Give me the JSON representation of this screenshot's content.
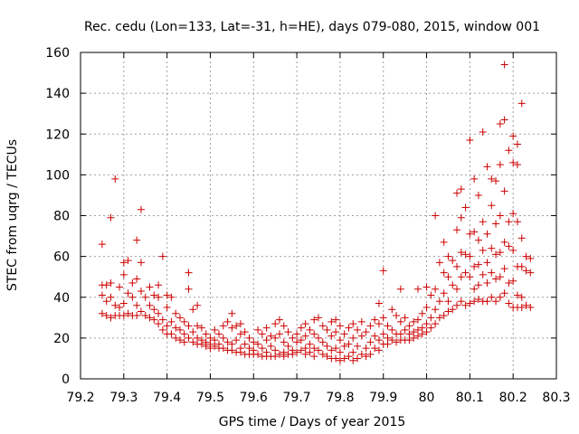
{
  "chart_data": {
    "type": "scatter",
    "title": "Rec. cedu (Lon=133, Lat=-31, h=HE), days 079-080, 2015, window 001",
    "xlabel": "GPS time / Days of year 2015",
    "ylabel": "STEC from uqrg / TECUs",
    "xlim": [
      79.2,
      80.3
    ],
    "ylim": [
      0,
      160
    ],
    "xticks": [
      79.2,
      79.3,
      79.4,
      79.5,
      79.6,
      79.7,
      79.8,
      79.9,
      80,
      80.1,
      80.2,
      80.3
    ],
    "yticks": [
      0,
      20,
      40,
      60,
      80,
      100,
      120,
      140,
      160
    ],
    "xtick_labels": [
      "79.2",
      "79.3",
      "79.4",
      "79.5",
      "79.6",
      "79.7",
      "79.8",
      "79.9",
      "80",
      "80.1",
      "80.2",
      "80.3"
    ],
    "ytick_labels": [
      "0",
      "20",
      "40",
      "60",
      "80",
      "100",
      "120",
      "140",
      "160"
    ],
    "grid": true,
    "marker": "+",
    "colors": {
      "marker": "#cc0000",
      "grid": "#a0a0a0",
      "axis": "#000000"
    },
    "points": [
      [
        79.25,
        66
      ],
      [
        79.25,
        46
      ],
      [
        79.25,
        41
      ],
      [
        79.25,
        32
      ],
      [
        79.26,
        46
      ],
      [
        79.26,
        38
      ],
      [
        79.26,
        31
      ],
      [
        79.27,
        79
      ],
      [
        79.27,
        47
      ],
      [
        79.27,
        40
      ],
      [
        79.27,
        30
      ],
      [
        79.28,
        98
      ],
      [
        79.28,
        36
      ],
      [
        79.28,
        31
      ],
      [
        79.29,
        45
      ],
      [
        79.29,
        35
      ],
      [
        79.29,
        31
      ],
      [
        79.3,
        57
      ],
      [
        79.3,
        51
      ],
      [
        79.3,
        37
      ],
      [
        79.3,
        31
      ],
      [
        79.31,
        58
      ],
      [
        79.31,
        42
      ],
      [
        79.31,
        32
      ],
      [
        79.32,
        47
      ],
      [
        79.32,
        40
      ],
      [
        79.32,
        31
      ],
      [
        79.33,
        68
      ],
      [
        79.33,
        49
      ],
      [
        79.33,
        36
      ],
      [
        79.33,
        31
      ],
      [
        79.34,
        83
      ],
      [
        79.34,
        57
      ],
      [
        79.34,
        43
      ],
      [
        79.34,
        33
      ],
      [
        79.35,
        40
      ],
      [
        79.35,
        31
      ],
      [
        79.36,
        45
      ],
      [
        79.36,
        36
      ],
      [
        79.36,
        30
      ],
      [
        79.37,
        41
      ],
      [
        79.37,
        34
      ],
      [
        79.37,
        29
      ],
      [
        79.38,
        46
      ],
      [
        79.38,
        40
      ],
      [
        79.38,
        32
      ],
      [
        79.38,
        27
      ],
      [
        79.39,
        60
      ],
      [
        79.39,
        29
      ],
      [
        79.39,
        24
      ],
      [
        79.4,
        41
      ],
      [
        79.4,
        35
      ],
      [
        79.4,
        26
      ],
      [
        79.4,
        22
      ],
      [
        79.41,
        40
      ],
      [
        79.41,
        28
      ],
      [
        79.41,
        22
      ],
      [
        79.42,
        32
      ],
      [
        79.42,
        25
      ],
      [
        79.42,
        20
      ],
      [
        79.43,
        30
      ],
      [
        79.43,
        24
      ],
      [
        79.43,
        19
      ],
      [
        79.44,
        28
      ],
      [
        79.44,
        22
      ],
      [
        79.44,
        18
      ],
      [
        79.45,
        52
      ],
      [
        79.45,
        44
      ],
      [
        79.45,
        26
      ],
      [
        79.45,
        20
      ],
      [
        79.46,
        34
      ],
      [
        79.46,
        23
      ],
      [
        79.46,
        18
      ],
      [
        79.47,
        36
      ],
      [
        79.47,
        26
      ],
      [
        79.47,
        20
      ],
      [
        79.47,
        17
      ],
      [
        79.48,
        25
      ],
      [
        79.48,
        19
      ],
      [
        79.48,
        17
      ],
      [
        79.49,
        22
      ],
      [
        79.49,
        18
      ],
      [
        79.49,
        16
      ],
      [
        79.5,
        20
      ],
      [
        79.5,
        17
      ],
      [
        79.5,
        15
      ],
      [
        79.51,
        24
      ],
      [
        79.51,
        19
      ],
      [
        79.51,
        16
      ],
      [
        79.52,
        22
      ],
      [
        79.52,
        17
      ],
      [
        79.52,
        15
      ],
      [
        79.53,
        26
      ],
      [
        79.53,
        20
      ],
      [
        79.53,
        15
      ],
      [
        79.54,
        28
      ],
      [
        79.54,
        18
      ],
      [
        79.54,
        14
      ],
      [
        79.55,
        32
      ],
      [
        79.55,
        25
      ],
      [
        79.55,
        17
      ],
      [
        79.55,
        14
      ],
      [
        79.56,
        26
      ],
      [
        79.56,
        19
      ],
      [
        79.56,
        13
      ],
      [
        79.57,
        27
      ],
      [
        79.57,
        22
      ],
      [
        79.57,
        15
      ],
      [
        79.57,
        13
      ],
      [
        79.58,
        23
      ],
      [
        79.58,
        17
      ],
      [
        79.58,
        12
      ],
      [
        79.59,
        20
      ],
      [
        79.59,
        15
      ],
      [
        79.59,
        12
      ],
      [
        79.6,
        18
      ],
      [
        79.6,
        14
      ],
      [
        79.6,
        12
      ],
      [
        79.61,
        24
      ],
      [
        79.61,
        17
      ],
      [
        79.61,
        12
      ],
      [
        79.62,
        22
      ],
      [
        79.62,
        15
      ],
      [
        79.62,
        11
      ],
      [
        79.63,
        25
      ],
      [
        79.63,
        19
      ],
      [
        79.63,
        13
      ],
      [
        79.63,
        11
      ],
      [
        79.64,
        21
      ],
      [
        79.64,
        16
      ],
      [
        79.64,
        11
      ],
      [
        79.65,
        27
      ],
      [
        79.65,
        20
      ],
      [
        79.65,
        14
      ],
      [
        79.65,
        11
      ],
      [
        79.66,
        29
      ],
      [
        79.66,
        22
      ],
      [
        79.66,
        12
      ],
      [
        79.67,
        26
      ],
      [
        79.67,
        18
      ],
      [
        79.67,
        13
      ],
      [
        79.67,
        11
      ],
      [
        79.68,
        23
      ],
      [
        79.68,
        16
      ],
      [
        79.68,
        12
      ],
      [
        79.69,
        20
      ],
      [
        79.69,
        14
      ],
      [
        79.69,
        12
      ],
      [
        79.7,
        22
      ],
      [
        79.7,
        18
      ],
      [
        79.7,
        13
      ],
      [
        79.71,
        25
      ],
      [
        79.71,
        19
      ],
      [
        79.71,
        14
      ],
      [
        79.72,
        27
      ],
      [
        79.72,
        21
      ],
      [
        79.72,
        15
      ],
      [
        79.72,
        12
      ],
      [
        79.73,
        24
      ],
      [
        79.73,
        17
      ],
      [
        79.73,
        13
      ],
      [
        79.74,
        29
      ],
      [
        79.74,
        22
      ],
      [
        79.74,
        15
      ],
      [
        79.74,
        11
      ],
      [
        79.75,
        30
      ],
      [
        79.75,
        20
      ],
      [
        79.75,
        14
      ],
      [
        79.76,
        26
      ],
      [
        79.76,
        18
      ],
      [
        79.76,
        12
      ],
      [
        79.77,
        24
      ],
      [
        79.77,
        16
      ],
      [
        79.77,
        11
      ],
      [
        79.78,
        28
      ],
      [
        79.78,
        21
      ],
      [
        79.78,
        14
      ],
      [
        79.78,
        10
      ],
      [
        79.79,
        29
      ],
      [
        79.79,
        23
      ],
      [
        79.79,
        15
      ],
      [
        79.79,
        10
      ],
      [
        79.8,
        26
      ],
      [
        79.8,
        19
      ],
      [
        79.8,
        13
      ],
      [
        79.8,
        9
      ],
      [
        79.81,
        22
      ],
      [
        79.81,
        16
      ],
      [
        79.81,
        10
      ],
      [
        79.82,
        25
      ],
      [
        79.82,
        17
      ],
      [
        79.82,
        11
      ],
      [
        79.83,
        27
      ],
      [
        79.83,
        20
      ],
      [
        79.83,
        13
      ],
      [
        79.83,
        9
      ],
      [
        79.84,
        24
      ],
      [
        79.84,
        16
      ],
      [
        79.84,
        10
      ],
      [
        79.85,
        28
      ],
      [
        79.85,
        21
      ],
      [
        79.85,
        12
      ],
      [
        79.86,
        23
      ],
      [
        79.86,
        15
      ],
      [
        79.86,
        11
      ],
      [
        79.87,
        26
      ],
      [
        79.87,
        18
      ],
      [
        79.87,
        12
      ],
      [
        79.88,
        29
      ],
      [
        79.88,
        21
      ],
      [
        79.88,
        15
      ],
      [
        79.89,
        37
      ],
      [
        79.89,
        27
      ],
      [
        79.89,
        19
      ],
      [
        79.89,
        14
      ],
      [
        79.9,
        53
      ],
      [
        79.9,
        30
      ],
      [
        79.9,
        22
      ],
      [
        79.9,
        17
      ],
      [
        79.91,
        26
      ],
      [
        79.91,
        20
      ],
      [
        79.91,
        17
      ],
      [
        79.92,
        34
      ],
      [
        79.92,
        24
      ],
      [
        79.92,
        19
      ],
      [
        79.93,
        31
      ],
      [
        79.93,
        22
      ],
      [
        79.93,
        18
      ],
      [
        79.94,
        44
      ],
      [
        79.94,
        28
      ],
      [
        79.94,
        22
      ],
      [
        79.94,
        19
      ],
      [
        79.95,
        30
      ],
      [
        79.95,
        24
      ],
      [
        79.95,
        19
      ],
      [
        79.96,
        26
      ],
      [
        79.96,
        22
      ],
      [
        79.96,
        19
      ],
      [
        79.97,
        28
      ],
      [
        79.97,
        23
      ],
      [
        79.97,
        20
      ],
      [
        79.98,
        44
      ],
      [
        79.98,
        29
      ],
      [
        79.98,
        24
      ],
      [
        79.98,
        21
      ],
      [
        79.99,
        32
      ],
      [
        79.99,
        25
      ],
      [
        79.99,
        22
      ],
      [
        80.0,
        45
      ],
      [
        80.0,
        35
      ],
      [
        80.0,
        27
      ],
      [
        80.0,
        23
      ],
      [
        80.01,
        41
      ],
      [
        80.01,
        30
      ],
      [
        80.01,
        25
      ],
      [
        80.02,
        80
      ],
      [
        80.02,
        44
      ],
      [
        80.02,
        34
      ],
      [
        80.02,
        27
      ],
      [
        80.03,
        57
      ],
      [
        80.03,
        38
      ],
      [
        80.03,
        30
      ],
      [
        80.04,
        67
      ],
      [
        80.04,
        52
      ],
      [
        80.04,
        42
      ],
      [
        80.04,
        31
      ],
      [
        80.05,
        60
      ],
      [
        80.05,
        50
      ],
      [
        80.05,
        38
      ],
      [
        80.05,
        33
      ],
      [
        80.06,
        58
      ],
      [
        80.06,
        46
      ],
      [
        80.06,
        34
      ],
      [
        80.07,
        91
      ],
      [
        80.07,
        73
      ],
      [
        80.07,
        55
      ],
      [
        80.07,
        44
      ],
      [
        80.07,
        36
      ],
      [
        80.08,
        93
      ],
      [
        80.08,
        79
      ],
      [
        80.08,
        62
      ],
      [
        80.08,
        50
      ],
      [
        80.08,
        38
      ],
      [
        80.09,
        84
      ],
      [
        80.09,
        61
      ],
      [
        80.09,
        52
      ],
      [
        80.09,
        36
      ],
      [
        80.1,
        117
      ],
      [
        80.1,
        71
      ],
      [
        80.1,
        60
      ],
      [
        80.1,
        50
      ],
      [
        80.1,
        37
      ],
      [
        80.11,
        98
      ],
      [
        80.11,
        72
      ],
      [
        80.11,
        55
      ],
      [
        80.11,
        44
      ],
      [
        80.11,
        38
      ],
      [
        80.12,
        90
      ],
      [
        80.12,
        68
      ],
      [
        80.12,
        56
      ],
      [
        80.12,
        46
      ],
      [
        80.12,
        39
      ],
      [
        80.13,
        121
      ],
      [
        80.13,
        77
      ],
      [
        80.13,
        63
      ],
      [
        80.13,
        51
      ],
      [
        80.13,
        38
      ],
      [
        80.14,
        104
      ],
      [
        80.14,
        71
      ],
      [
        80.14,
        57
      ],
      [
        80.14,
        47
      ],
      [
        80.14,
        38
      ],
      [
        80.15,
        98
      ],
      [
        80.15,
        85
      ],
      [
        80.15,
        64
      ],
      [
        80.15,
        52
      ],
      [
        80.15,
        40
      ],
      [
        80.16,
        97
      ],
      [
        80.16,
        76
      ],
      [
        80.16,
        61
      ],
      [
        80.16,
        49
      ],
      [
        80.16,
        38
      ],
      [
        80.17,
        125
      ],
      [
        80.17,
        105
      ],
      [
        80.17,
        80
      ],
      [
        80.17,
        62
      ],
      [
        80.17,
        50
      ],
      [
        80.17,
        40
      ],
      [
        80.18,
        154
      ],
      [
        80.18,
        127
      ],
      [
        80.18,
        92
      ],
      [
        80.18,
        67
      ],
      [
        80.18,
        54
      ],
      [
        80.18,
        42
      ],
      [
        80.19,
        112
      ],
      [
        80.19,
        77
      ],
      [
        80.19,
        65
      ],
      [
        80.19,
        47
      ],
      [
        80.19,
        37
      ],
      [
        80.2,
        119
      ],
      [
        80.2,
        106
      ],
      [
        80.2,
        81
      ],
      [
        80.2,
        63
      ],
      [
        80.2,
        48
      ],
      [
        80.2,
        35
      ],
      [
        80.21,
        115
      ],
      [
        80.21,
        105
      ],
      [
        80.21,
        77
      ],
      [
        80.21,
        55
      ],
      [
        80.21,
        41
      ],
      [
        80.21,
        35
      ],
      [
        80.22,
        135
      ],
      [
        80.22,
        69
      ],
      [
        80.22,
        55
      ],
      [
        80.22,
        40
      ],
      [
        80.22,
        35
      ],
      [
        80.23,
        60
      ],
      [
        80.23,
        53
      ],
      [
        80.23,
        36
      ],
      [
        80.24,
        59
      ],
      [
        80.24,
        52
      ],
      [
        80.24,
        35
      ]
    ]
  }
}
